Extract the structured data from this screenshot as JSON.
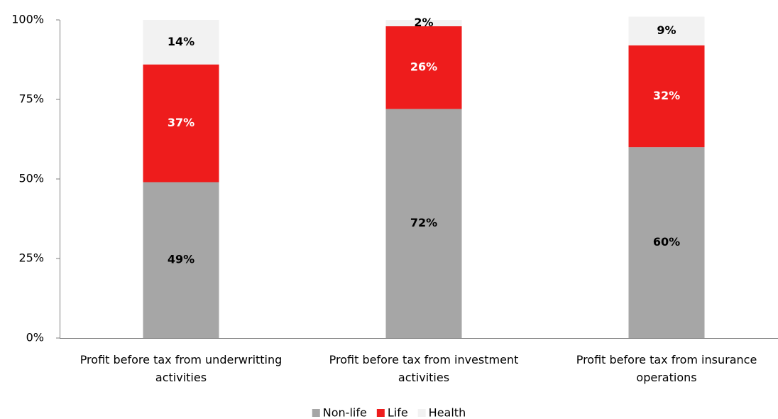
{
  "chart_data": {
    "type": "stacked_bar",
    "categories": [
      "Profit before tax from underwritting activities",
      "Profit before tax from investment activities",
      "Profit before tax from insurance operations"
    ],
    "series": [
      {
        "name": "Non-life",
        "color": "#a6a6a6",
        "label_color": "#000000",
        "values": [
          49,
          72,
          60
        ],
        "value_labels": [
          "49%",
          "72%",
          "60%"
        ]
      },
      {
        "name": "Life",
        "color": "#ee1c1c",
        "label_color": "#ffffff",
        "values": [
          37,
          26,
          32
        ],
        "value_labels": [
          "37%",
          "26%",
          "32%"
        ]
      },
      {
        "name": "Health",
        "color": "#f2f2f2",
        "label_color": "#000000",
        "values": [
          14,
          2,
          9
        ],
        "value_labels": [
          "14%",
          "2%",
          "9%"
        ]
      }
    ],
    "ylim": [
      0,
      100
    ],
    "yticks": [
      {
        "value": 0,
        "label": "0%"
      },
      {
        "value": 25,
        "label": "25%"
      },
      {
        "value": 50,
        "label": "50%"
      },
      {
        "value": 75,
        "label": "75%"
      },
      {
        "value": 100,
        "label": "100%"
      }
    ],
    "grid": false,
    "legend": "bottom"
  }
}
